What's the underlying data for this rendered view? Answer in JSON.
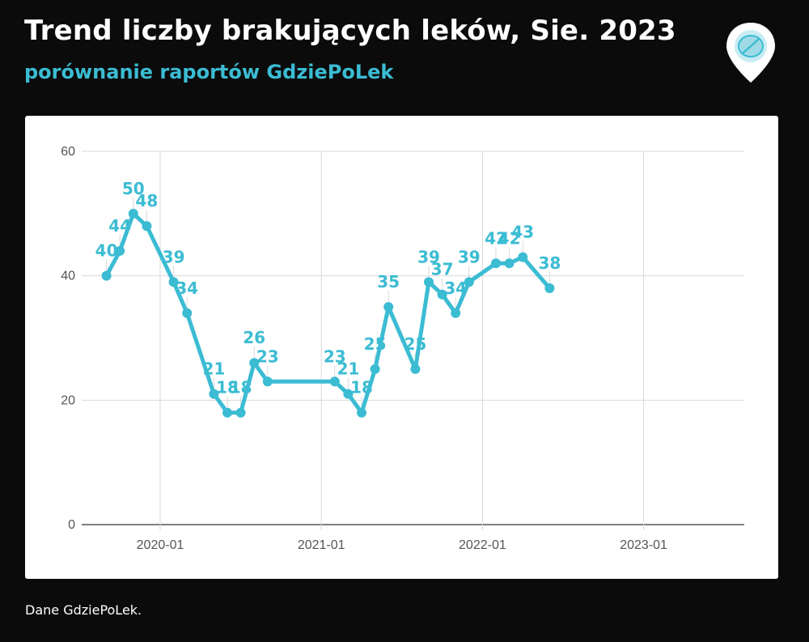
{
  "header": {
    "title": "Trend liczby brakujących leków, Sie. 2023",
    "subtitle": "porównanie raportów GdziePoLek"
  },
  "footer": {
    "source": "Dane GdziePoLek."
  },
  "logo": {
    "icon": "pill-location-pin-icon",
    "color": "#3bbcd3"
  },
  "colors": {
    "series": "#3bbcd3",
    "background": "#0b0b0b",
    "panel": "#ffffff",
    "grid": "#d9d9d9"
  },
  "chart_data": {
    "type": "line",
    "title": "",
    "xlabel": "",
    "ylabel": "",
    "ylim": [
      0,
      60
    ],
    "yticks": [
      0,
      20,
      40,
      60
    ],
    "xticks": [
      "2020-01",
      "2021-01",
      "2022-01",
      "2023-01"
    ],
    "grid": true,
    "legend": "none",
    "series": [
      {
        "x": [
          "2019-09",
          "2019-10",
          "2019-11",
          "2019-12",
          "2020-02",
          "2020-03",
          "2020-05",
          "2020-06",
          "2020-07",
          "2020-08",
          "2020-09",
          "2021-02",
          "2021-03",
          "2021-04",
          "2021-05",
          "2021-06",
          "2021-08",
          "2021-09",
          "2021-10",
          "2021-11",
          "2021-12",
          "2022-02",
          "2022-03",
          "2022-04",
          "2022-06",
          "2022-07",
          "2022-08",
          "2022-10",
          "2022-11",
          "2022-12",
          "2023-02",
          "2023-03",
          "2023-04",
          "2023-05",
          "2023-06",
          "2023-07",
          "2023-08"
        ],
        "values": [
          40,
          44,
          50,
          48,
          39,
          34,
          21,
          18,
          18,
          26,
          23,
          23,
          21,
          18,
          25,
          35,
          25,
          39,
          37,
          34,
          39,
          42,
          42,
          43,
          38,
          null,
          null,
          null,
          null,
          null,
          null,
          null,
          null,
          null,
          null,
          null,
          null
        ]
      }
    ]
  }
}
